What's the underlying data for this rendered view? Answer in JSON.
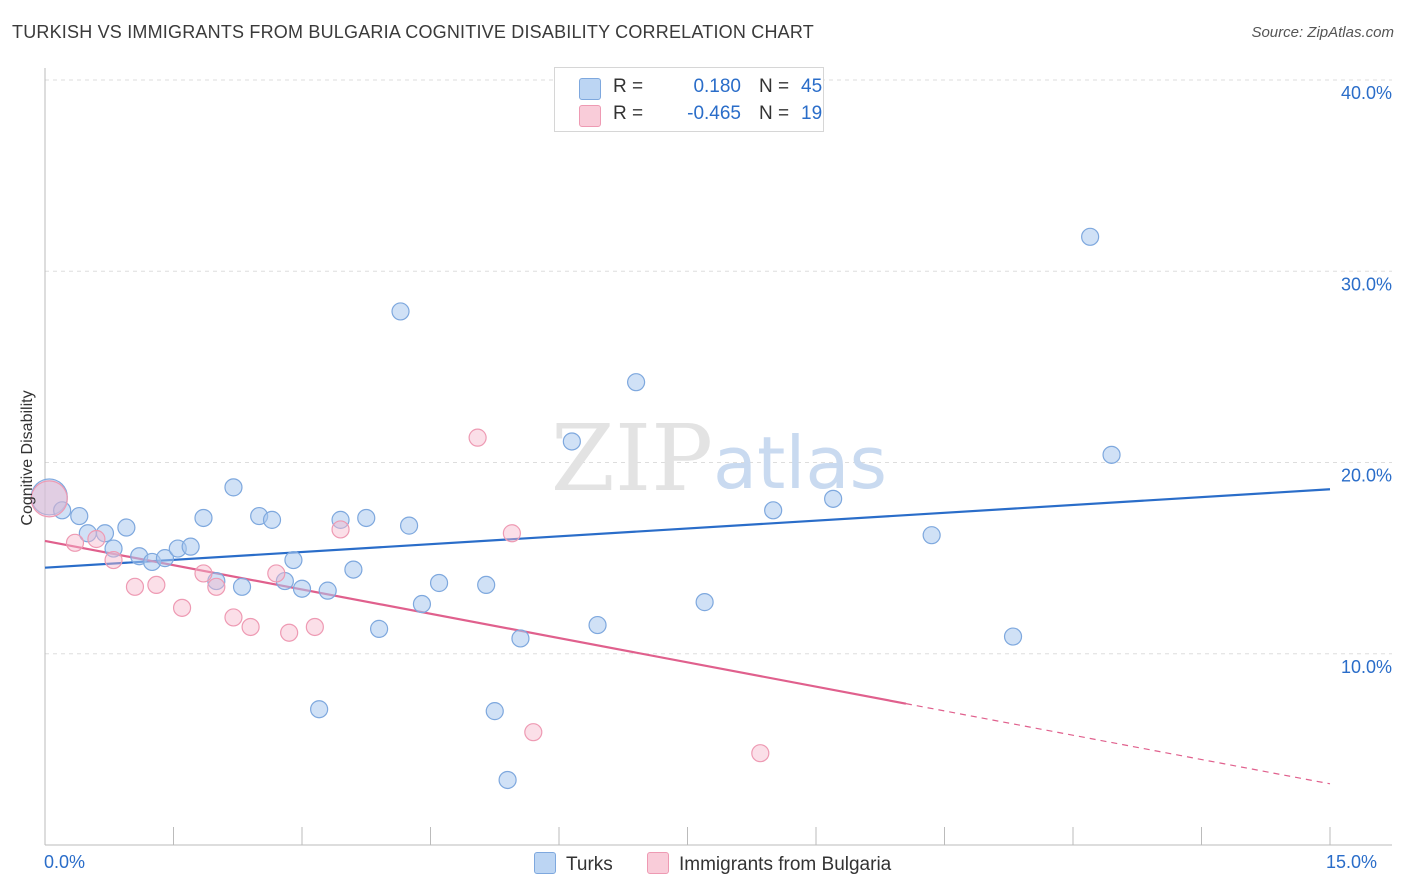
{
  "title": "TURKISH VS IMMIGRANTS FROM BULGARIA COGNITIVE DISABILITY CORRELATION CHART",
  "source": "Source: ZipAtlas.com",
  "watermark": {
    "zip": "ZIP",
    "atlas": "atlas"
  },
  "legend": {
    "turks": {
      "r_label": "R =",
      "r_value": "0.180",
      "n_label": "N =",
      "n_value": "45"
    },
    "bulgaria": {
      "r_label": "R =",
      "r_value": "-0.465",
      "n_label": "N =",
      "n_value": "19"
    }
  },
  "bottom_legend": {
    "turks": "Turks",
    "bulgaria": "Immigrants from Bulgaria"
  },
  "x_axis": {
    "min_label": "0.0%",
    "max_label": "15.0%"
  },
  "colors": {
    "turks_fill": "#a9c8ef",
    "turks_stroke": "#7ea8de",
    "turks_line": "#2a6dc9",
    "bulgaria_fill": "#f6b9cb",
    "bulgaria_stroke": "#ee9ab3",
    "bulgaria_line": "#e0608d",
    "axis_text": "#2a6dc9",
    "grid": "#dddddd"
  },
  "chart_data": {
    "type": "scatter",
    "title": "TURKISH VS IMMIGRANTS FROM BULGARIA COGNITIVE DISABILITY CORRELATION CHART",
    "xlabel": "",
    "ylabel": "Cognitive Disability",
    "xlim": [
      0,
      15
    ],
    "ylim": [
      0,
      40
    ],
    "x_ticks": [
      0,
      1.5,
      3,
      4.5,
      6,
      7.5,
      9,
      10.5,
      12,
      13.5,
      15
    ],
    "y_ticks": [
      {
        "value": 10,
        "label": "10.0%"
      },
      {
        "value": 20,
        "label": "20.0%"
      },
      {
        "value": 30,
        "label": "30.0%"
      },
      {
        "value": 40,
        "label": "40.0%"
      }
    ],
    "series": [
      {
        "name": "Turks",
        "r": 0.18,
        "n": 45,
        "trend": {
          "x0": 0,
          "y0": 14.5,
          "x1": 15,
          "y1": 18.6,
          "solid_until": 15
        },
        "points": [
          {
            "x": 0.05,
            "y": 18.2,
            "big": true
          },
          {
            "x": 0.2,
            "y": 17.5
          },
          {
            "x": 0.4,
            "y": 17.2
          },
          {
            "x": 0.5,
            "y": 16.3
          },
          {
            "x": 0.7,
            "y": 16.3
          },
          {
            "x": 0.8,
            "y": 15.5
          },
          {
            "x": 0.95,
            "y": 16.6
          },
          {
            "x": 1.1,
            "y": 15.1
          },
          {
            "x": 1.25,
            "y": 14.8
          },
          {
            "x": 1.4,
            "y": 15.0
          },
          {
            "x": 1.55,
            "y": 15.5
          },
          {
            "x": 1.7,
            "y": 15.6
          },
          {
            "x": 1.85,
            "y": 17.1
          },
          {
            "x": 2.0,
            "y": 13.8
          },
          {
            "x": 2.2,
            "y": 18.7
          },
          {
            "x": 2.3,
            "y": 13.5
          },
          {
            "x": 2.5,
            "y": 17.2
          },
          {
            "x": 2.65,
            "y": 17.0
          },
          {
            "x": 2.8,
            "y": 13.8
          },
          {
            "x": 2.9,
            "y": 14.9
          },
          {
            "x": 3.0,
            "y": 13.4
          },
          {
            "x": 3.2,
            "y": 7.1
          },
          {
            "x": 3.3,
            "y": 13.3
          },
          {
            "x": 3.45,
            "y": 17.0
          },
          {
            "x": 3.6,
            "y": 14.4
          },
          {
            "x": 3.75,
            "y": 17.1
          },
          {
            "x": 3.9,
            "y": 11.3
          },
          {
            "x": 4.15,
            "y": 27.9
          },
          {
            "x": 4.25,
            "y": 16.7
          },
          {
            "x": 4.4,
            "y": 12.6
          },
          {
            "x": 4.6,
            "y": 13.7
          },
          {
            "x": 5.15,
            "y": 13.6
          },
          {
            "x": 5.25,
            "y": 7.0
          },
          {
            "x": 5.4,
            "y": 3.4
          },
          {
            "x": 5.55,
            "y": 10.8
          },
          {
            "x": 6.15,
            "y": 21.1
          },
          {
            "x": 6.45,
            "y": 11.5
          },
          {
            "x": 6.9,
            "y": 24.2
          },
          {
            "x": 7.7,
            "y": 12.7
          },
          {
            "x": 8.5,
            "y": 17.5
          },
          {
            "x": 9.2,
            "y": 18.1
          },
          {
            "x": 10.35,
            "y": 16.2
          },
          {
            "x": 11.3,
            "y": 10.9
          },
          {
            "x": 12.2,
            "y": 31.8
          },
          {
            "x": 12.45,
            "y": 20.4
          }
        ]
      },
      {
        "name": "Immigrants from Bulgaria",
        "r": -0.465,
        "n": 19,
        "trend": {
          "x0": 0,
          "y0": 15.9,
          "x1": 15,
          "y1": 3.2,
          "solid_until": 10.05
        },
        "points": [
          {
            "x": 0.05,
            "y": 18.1,
            "big": true
          },
          {
            "x": 0.35,
            "y": 15.8
          },
          {
            "x": 0.6,
            "y": 16.0
          },
          {
            "x": 0.8,
            "y": 14.9
          },
          {
            "x": 1.05,
            "y": 13.5
          },
          {
            "x": 1.3,
            "y": 13.6
          },
          {
            "x": 1.6,
            "y": 12.4
          },
          {
            "x": 1.85,
            "y": 14.2
          },
          {
            "x": 2.0,
            "y": 13.5
          },
          {
            "x": 2.2,
            "y": 11.9
          },
          {
            "x": 2.4,
            "y": 11.4
          },
          {
            "x": 2.7,
            "y": 14.2
          },
          {
            "x": 2.85,
            "y": 11.1
          },
          {
            "x": 3.15,
            "y": 11.4
          },
          {
            "x": 3.45,
            "y": 16.5
          },
          {
            "x": 5.05,
            "y": 21.3
          },
          {
            "x": 5.45,
            "y": 16.3
          },
          {
            "x": 5.7,
            "y": 5.9
          },
          {
            "x": 8.35,
            "y": 4.8
          }
        ]
      }
    ]
  }
}
